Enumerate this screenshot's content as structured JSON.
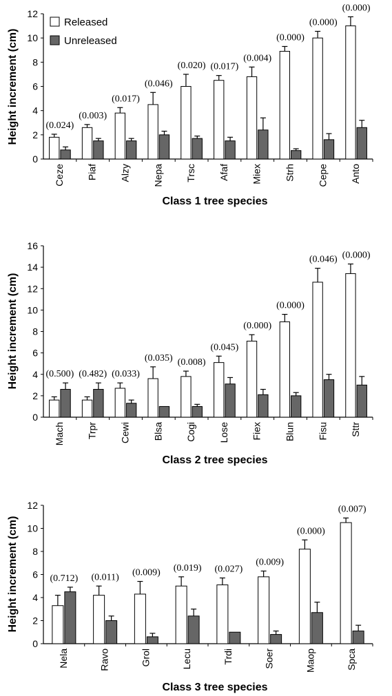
{
  "legend": {
    "released": "Released",
    "unreleased": "Unreleased"
  },
  "colors": {
    "released": "#ffffff",
    "unreleased": "#666666"
  },
  "chart_data": [
    {
      "type": "bar",
      "xlabel": "Class 1 tree species",
      "ylabel": "Height increment (cm)",
      "ylim": [
        0,
        12
      ],
      "yticks": [
        0,
        2,
        4,
        6,
        8,
        10,
        12
      ],
      "legend": "top-left",
      "categories": [
        "Ceze",
        "Piaf",
        "Alzy",
        "Nepa",
        "Trsc",
        "Afaf",
        "Miex",
        "Strh",
        "Cepe",
        "Anto"
      ],
      "series": [
        {
          "name": "Released",
          "values": [
            1.8,
            2.6,
            3.8,
            4.5,
            6.0,
            6.5,
            6.8,
            8.9,
            10.0,
            11.0
          ],
          "errors": [
            0.25,
            0.25,
            0.45,
            1.0,
            1.0,
            0.4,
            0.8,
            0.4,
            0.55,
            0.75
          ]
        },
        {
          "name": "Unreleased",
          "values": [
            0.75,
            1.5,
            1.5,
            2.0,
            1.7,
            1.5,
            2.4,
            0.7,
            1.6,
            2.6
          ],
          "errors": [
            0.25,
            0.2,
            0.2,
            0.3,
            0.2,
            0.3,
            1.0,
            0.15,
            0.5,
            0.6
          ]
        }
      ],
      "p_values": [
        "(0.024)",
        "(0.003)",
        "(0.017)",
        "(0.046)",
        "(0.020)",
        "(0.017)",
        "(0.004)",
        "(0.000)",
        "(0.000)",
        "(0.000)"
      ]
    },
    {
      "type": "bar",
      "xlabel": "Class 2 tree species",
      "ylabel": "Height increment (cm)",
      "ylim": [
        0,
        16
      ],
      "yticks": [
        0,
        2,
        4,
        6,
        8,
        10,
        12,
        14,
        16
      ],
      "categories": [
        "Mach",
        "Trpr",
        "Cewi",
        "Blsa",
        "Cogi",
        "Lose",
        "Fiex",
        "Blun",
        "Fisu",
        "Sttr"
      ],
      "series": [
        {
          "name": "Released",
          "values": [
            1.6,
            1.6,
            2.7,
            3.6,
            3.8,
            5.1,
            7.1,
            8.9,
            12.6,
            13.4
          ],
          "errors": [
            0.3,
            0.3,
            0.5,
            1.1,
            0.5,
            0.6,
            0.6,
            0.7,
            1.3,
            0.9
          ]
        },
        {
          "name": "Unreleased",
          "values": [
            2.6,
            2.6,
            1.3,
            1.0,
            1.0,
            3.1,
            2.1,
            2.0,
            3.5,
            3.0
          ],
          "errors": [
            0.6,
            0.6,
            0.3,
            0.0,
            0.2,
            0.6,
            0.5,
            0.3,
            0.5,
            0.8
          ]
        }
      ],
      "p_values": [
        "(0.500)",
        "(0.482)",
        "(0.033)",
        "(0.035)",
        "(0.008)",
        "(0.045)",
        "(0.000)",
        "(0.000)",
        "(0.046)",
        "(0.000)"
      ]
    },
    {
      "type": "bar",
      "xlabel": "Class 3 tree species",
      "ylabel": "Height increment (cm)",
      "ylim": [
        0,
        12
      ],
      "yticks": [
        0,
        2,
        4,
        6,
        8,
        10,
        12
      ],
      "categories": [
        "Nela",
        "Ravo",
        "Grol",
        "Lecu",
        "Trdi",
        "Soer",
        "Maop",
        "Spca"
      ],
      "series": [
        {
          "name": "Released",
          "values": [
            3.3,
            4.2,
            4.3,
            5.0,
            5.1,
            5.8,
            8.2,
            10.5
          ],
          "errors": [
            0.9,
            0.8,
            1.1,
            0.8,
            0.6,
            0.5,
            0.8,
            0.4
          ]
        },
        {
          "name": "Unreleased",
          "values": [
            4.5,
            2.0,
            0.6,
            2.4,
            1.0,
            0.8,
            2.7,
            1.1
          ],
          "errors": [
            0.4,
            0.4,
            0.3,
            0.6,
            0.0,
            0.3,
            0.9,
            0.5
          ]
        }
      ],
      "p_values": [
        "(0.712)",
        "(0.011)",
        "(0.009)",
        "(0.019)",
        "(0.027)",
        "(0.009)",
        "(0.000)",
        "(0.007)"
      ]
    }
  ]
}
